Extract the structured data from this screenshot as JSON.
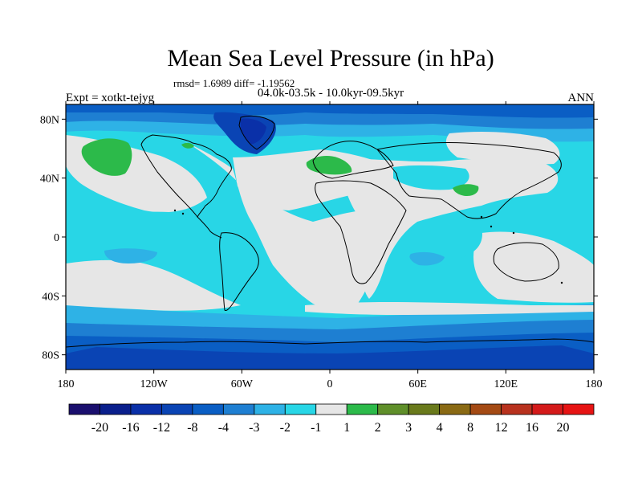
{
  "chart_data": {
    "type": "heatmap",
    "title": "Mean Sea Level Pressure (in hPa)",
    "subtitle_stats": "rmsd= 1.6989 diff= -1.19562",
    "subtitle_period": "04.0k-03.5k - 10.0kyr-09.5kyr",
    "left_label": "Expt = xotkt-tejyg",
    "right_label": "ANN",
    "x_ticks": [
      "180",
      "120W",
      "60W",
      "0",
      "60E",
      "120E",
      "180"
    ],
    "y_ticks": [
      "80N",
      "40N",
      "0",
      "40S",
      "80S"
    ],
    "xlim": [
      -180,
      180
    ],
    "ylim": [
      -90,
      90
    ],
    "colorbar": {
      "labels": [
        "-20",
        "-16",
        "-12",
        "-8",
        "-4",
        "-3",
        "-2",
        "-1",
        "1",
        "2",
        "3",
        "4",
        "8",
        "12",
        "16",
        "20"
      ],
      "colors": [
        "#1a0f6e",
        "#0a1f8c",
        "#0a30a8",
        "#0a44b4",
        "#0a5ec4",
        "#1e7fd2",
        "#2eb2e6",
        "#28d6e6",
        "#e6e6e6",
        "#2cba4a",
        "#5f8f2a",
        "#6a7a1c",
        "#8a6a14",
        "#a44a14",
        "#b8321e",
        "#d41a1a",
        "#e61414"
      ]
    },
    "regions": [
      {
        "name": "ocean-cyan",
        "level": "-2 to -1"
      },
      {
        "name": "land-neutral",
        "level": "-1 to 1"
      },
      {
        "name": "southern-ocean",
        "level": "-4 to -2"
      },
      {
        "name": "antarctic",
        "level": "-8 to -4"
      },
      {
        "name": "green-patches",
        "level": "1 to 2"
      }
    ]
  }
}
